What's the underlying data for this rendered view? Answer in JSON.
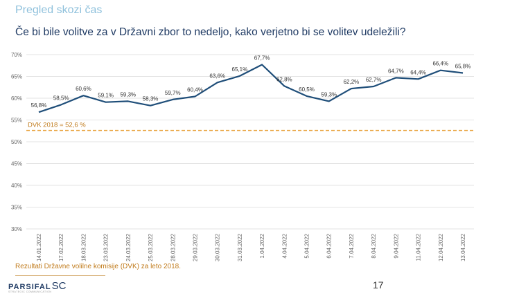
{
  "header": {
    "section_title": "Pregled skozi čas",
    "question": "Če bi bile volitve za v Državni zbor to nedeljo, kako verjetno bi se volitev udeležili?"
  },
  "chart_data": {
    "type": "line",
    "title": "",
    "xlabel": "",
    "ylabel": "",
    "ylim": [
      30,
      70
    ],
    "y_ticks": [
      30,
      35,
      40,
      45,
      50,
      55,
      60,
      65,
      70
    ],
    "y_tick_suffix": "%",
    "grid": true,
    "legend": "none",
    "categories": [
      "14.01.2022",
      "17.02.2022",
      "18.03.2022",
      "23.03.2022",
      "24.03.2022",
      "25.03.2022",
      "28.03.2022",
      "29.03.2022",
      "30.03.2022",
      "31.03.2022",
      "1.04.2022",
      "4.04.2022",
      "5.04.2022",
      "6.04.2022",
      "7.04.2022",
      "8.04.2022",
      "9.04.2022",
      "11.04.2022",
      "12.04.2022",
      "13.04.2022"
    ],
    "series": [
      {
        "values": [
          56.8,
          58.5,
          60.6,
          59.1,
          59.3,
          58.3,
          59.7,
          60.4,
          63.6,
          65.1,
          67.7,
          62.8,
          60.5,
          59.3,
          62.2,
          62.7,
          64.7,
          64.4,
          66.4,
          65.8
        ],
        "labels": [
          "56,8%",
          "58,5%",
          "60,6%",
          "59,1%",
          "59,3%",
          "58,3%",
          "59,7%",
          "60,4%",
          "63,6%",
          "65,1%",
          "67,7%",
          "62,8%",
          "60,5%",
          "59,3%",
          "62,2%",
          "62,7%",
          "64,7%",
          "64,4%",
          "66,4%",
          "65,8%"
        ],
        "color": "#1f4e79"
      }
    ],
    "reference_line": {
      "value": 52.6,
      "label": "DVK 2018 = 52,6 %",
      "color": "#e8a33d"
    }
  },
  "footer": {
    "note": "Rezultati Državne volilne komisije (DVK) za leto 2018.",
    "logo_main": "PARSIFAL",
    "logo_sc": "SC",
    "logo_tagline": "STRATEGIC COMMUNICATION",
    "page_number": "17"
  }
}
